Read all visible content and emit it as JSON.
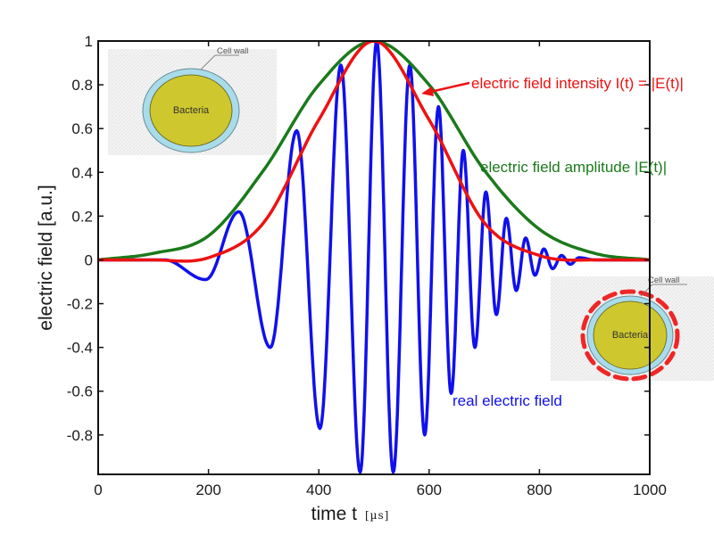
{
  "chart_data": {
    "type": "line",
    "title": "",
    "xlabel": "time t",
    "xlabel_unit": "[µs]",
    "ylabel": "electric field [a.u.]",
    "xlim": [
      0,
      1000
    ],
    "ylim": [
      -0.98,
      1
    ],
    "grid": false,
    "x_ticks": [
      0,
      200,
      400,
      600,
      800,
      1000
    ],
    "x_tick_labels": [
      "0",
      "200",
      "400",
      "600",
      "800",
      "1000"
    ],
    "y_ticks": [
      1,
      0.8,
      0.6,
      0.4,
      0.2,
      0,
      -0.2,
      -0.4,
      -0.6,
      -0.8
    ],
    "y_tick_labels": [
      "1",
      "0.8",
      "0.6",
      "0.4",
      "0.2",
      "0",
      "-0.2",
      "-0.4",
      "-0.6",
      "-0.8"
    ],
    "pulse": {
      "center": 500,
      "envelope_sigma": 150,
      "carrier_period_at_center": 63,
      "chirp_note": "period shortens with time"
    },
    "series": [
      {
        "name": "real electric field",
        "color": "#1010ee",
        "description": "chirped oscillation under Gaussian envelope",
        "extrema": [
          {
            "x": 195,
            "y": -0.09
          },
          {
            "x": 255,
            "y": 0.22
          },
          {
            "x": 312,
            "y": -0.4
          },
          {
            "x": 360,
            "y": 0.59
          },
          {
            "x": 402,
            "y": -0.77
          },
          {
            "x": 440,
            "y": 0.89
          },
          {
            "x": 475,
            "y": -0.97
          },
          {
            "x": 505,
            "y": 1.0
          },
          {
            "x": 535,
            "y": -0.97
          },
          {
            "x": 565,
            "y": 0.89
          },
          {
            "x": 592,
            "y": -0.8
          },
          {
            "x": 617,
            "y": 0.7
          },
          {
            "x": 640,
            "y": -0.61
          },
          {
            "x": 662,
            "y": 0.5
          },
          {
            "x": 683,
            "y": -0.4
          },
          {
            "x": 703,
            "y": 0.31
          },
          {
            "x": 722,
            "y": -0.25
          },
          {
            "x": 740,
            "y": 0.19
          },
          {
            "x": 758,
            "y": -0.14
          },
          {
            "x": 775,
            "y": 0.1
          },
          {
            "x": 792,
            "y": -0.07
          },
          {
            "x": 808,
            "y": 0.05
          },
          {
            "x": 824,
            "y": -0.04
          },
          {
            "x": 840,
            "y": 0.02
          },
          {
            "x": 856,
            "y": -0.02
          },
          {
            "x": 872,
            "y": 0.01
          }
        ]
      },
      {
        "name": "electric field amplitude |E(t)|",
        "color": "#1a7a1a",
        "points": [
          {
            "x": 0,
            "y": 0.0
          },
          {
            "x": 100,
            "y": 0.03
          },
          {
            "x": 200,
            "y": 0.11
          },
          {
            "x": 300,
            "y": 0.41
          },
          {
            "x": 400,
            "y": 0.8
          },
          {
            "x": 500,
            "y": 1.0
          },
          {
            "x": 600,
            "y": 0.8
          },
          {
            "x": 700,
            "y": 0.41
          },
          {
            "x": 800,
            "y": 0.14
          },
          {
            "x": 900,
            "y": 0.03
          },
          {
            "x": 1000,
            "y": 0.0
          }
        ]
      },
      {
        "name": "electric field intensity I(t) = |E(t)|",
        "color": "#ee1111",
        "points": [
          {
            "x": 0,
            "y": 0.0
          },
          {
            "x": 100,
            "y": 0.0
          },
          {
            "x": 200,
            "y": 0.01
          },
          {
            "x": 300,
            "y": 0.17
          },
          {
            "x": 400,
            "y": 0.64
          },
          {
            "x": 500,
            "y": 1.0
          },
          {
            "x": 600,
            "y": 0.64
          },
          {
            "x": 700,
            "y": 0.17
          },
          {
            "x": 800,
            "y": 0.02
          },
          {
            "x": 900,
            "y": 0.0
          },
          {
            "x": 1000,
            "y": 0.0
          }
        ]
      }
    ],
    "annotations": [
      {
        "text": "electric field intensity I(t) = |E(t)|",
        "color": "#ee1111",
        "arrow_to": {
          "x": 560,
          "y": 0.76
        }
      },
      {
        "text": "electric field amplitude |E(t)|",
        "color": "#1a7a1a"
      },
      {
        "text": "real electric field",
        "color": "#1010ee"
      }
    ]
  },
  "insets": [
    {
      "name": "bacteria-intact",
      "cell_label": "Bacteria",
      "wall_label": "Cell wall",
      "damaged": false
    },
    {
      "name": "bacteria-damaged",
      "cell_label": "Bacteria",
      "wall_label": "Cell wall",
      "damaged": true
    }
  ],
  "colors": {
    "cell_body": "#cec72e",
    "cell_wall": "#a9dcea",
    "damage": "#ee1111",
    "axis": "#111111"
  }
}
